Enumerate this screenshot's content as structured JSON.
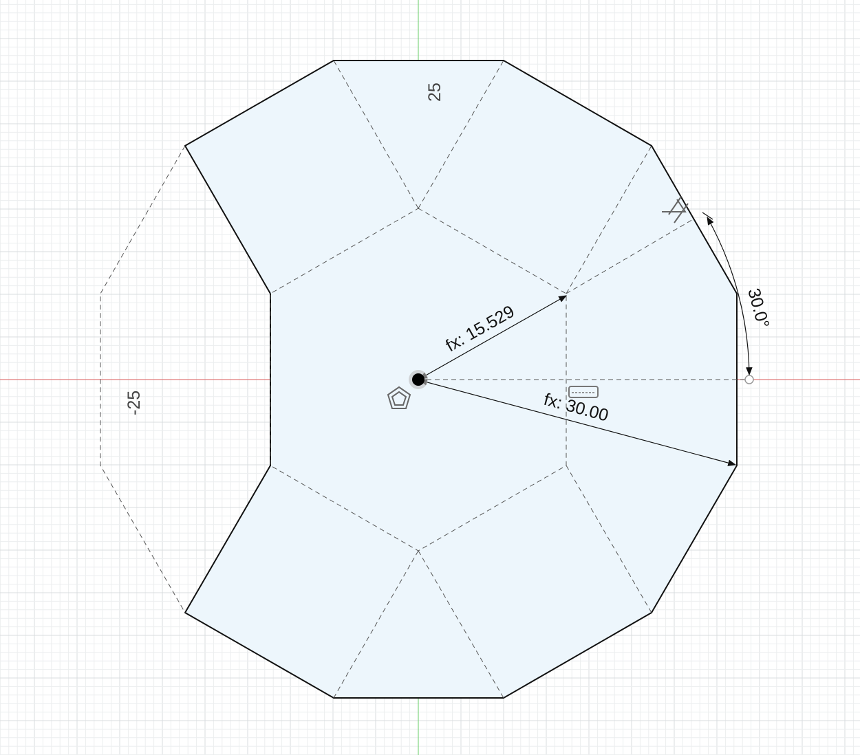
{
  "axis_labels": {
    "top_value": "25",
    "left_value": "-25"
  },
  "dimensions": {
    "radius_inner": "fx: 15.529",
    "radius_outer": "fx: 30.00",
    "angle": "30.0°"
  },
  "glyphs": {
    "center_tool": "polygon-center-icon",
    "parallel_constraint": "parallel-constraint-icon",
    "horizontal_constraint": "horizontal-constraint-icon"
  },
  "colors": {
    "profile_fill": "#edf6fc",
    "axis_x": "#e07a7a",
    "axis_y": "#7fd47f"
  }
}
